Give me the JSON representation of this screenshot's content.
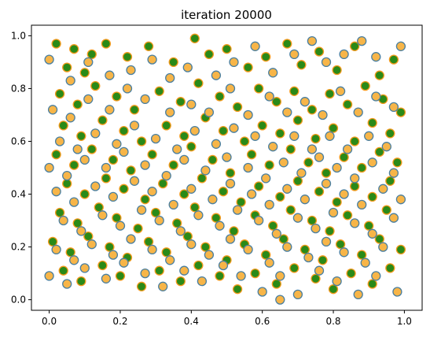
{
  "chart_data": {
    "type": "scatter",
    "title": "iteration 20000",
    "xlabel": "",
    "ylabel": "",
    "xlim": [
      -0.05,
      1.05
    ],
    "ylim": [
      -0.04,
      1.04
    ],
    "x_ticks": [
      "0.0",
      "0.2",
      "0.4",
      "0.6",
      "0.8",
      "1.0"
    ],
    "y_ticks": [
      "0.0",
      "0.2",
      "0.4",
      "0.6",
      "0.8",
      "1.0"
    ],
    "x_tick_values": [
      0.0,
      0.2,
      0.4,
      0.6,
      0.8,
      1.0
    ],
    "y_tick_values": [
      0.0,
      0.2,
      0.4,
      0.6,
      0.8,
      1.0
    ],
    "grid": false,
    "legend": false,
    "approx_point_count": 1000,
    "series": [
      {
        "fill": "#2a8a18",
        "edge": "#f59a1c",
        "points": [
          [
            0.02,
            0.97
          ],
          [
            0.05,
            0.88
          ],
          [
            0.07,
            0.95
          ],
          [
            0.1,
            0.86
          ],
          [
            0.12,
            0.93
          ],
          [
            0.16,
            0.97
          ],
          [
            0.22,
            0.92
          ],
          [
            0.28,
            0.96
          ],
          [
            0.35,
            0.9
          ],
          [
            0.41,
            0.99
          ],
          [
            0.45,
            0.93
          ],
          [
            0.5,
            0.95
          ],
          [
            0.56,
            0.88
          ],
          [
            0.61,
            0.92
          ],
          [
            0.67,
            0.97
          ],
          [
            0.71,
            0.89
          ],
          [
            0.76,
            0.94
          ],
          [
            0.81,
            0.87
          ],
          [
            0.86,
            0.96
          ],
          [
            0.93,
            0.85
          ],
          [
            0.97,
            0.91
          ],
          [
            0.03,
            0.78
          ],
          [
            0.08,
            0.74
          ],
          [
            0.13,
            0.81
          ],
          [
            0.19,
            0.77
          ],
          [
            0.24,
            0.72
          ],
          [
            0.31,
            0.79
          ],
          [
            0.37,
            0.75
          ],
          [
            0.42,
            0.82
          ],
          [
            0.48,
            0.77
          ],
          [
            0.53,
            0.73
          ],
          [
            0.59,
            0.8
          ],
          [
            0.64,
            0.75
          ],
          [
            0.69,
            0.79
          ],
          [
            0.74,
            0.72
          ],
          [
            0.79,
            0.78
          ],
          [
            0.84,
            0.74
          ],
          [
            0.89,
            0.81
          ],
          [
            0.94,
            0.76
          ],
          [
            0.99,
            0.71
          ],
          [
            0.04,
            0.66
          ],
          [
            0.09,
            0.62
          ],
          [
            0.15,
            0.68
          ],
          [
            0.21,
            0.64
          ],
          [
            0.26,
            0.6
          ],
          [
            0.33,
            0.66
          ],
          [
            0.38,
            0.62
          ],
          [
            0.44,
            0.69
          ],
          [
            0.49,
            0.64
          ],
          [
            0.55,
            0.6
          ],
          [
            0.6,
            0.66
          ],
          [
            0.65,
            0.63
          ],
          [
            0.7,
            0.68
          ],
          [
            0.75,
            0.61
          ],
          [
            0.8,
            0.65
          ],
          [
            0.86,
            0.6
          ],
          [
            0.91,
            0.67
          ],
          [
            0.96,
            0.63
          ],
          [
            0.02,
            0.55
          ],
          [
            0.07,
            0.51
          ],
          [
            0.12,
            0.57
          ],
          [
            0.18,
            0.53
          ],
          [
            0.23,
            0.49
          ],
          [
            0.29,
            0.55
          ],
          [
            0.35,
            0.51
          ],
          [
            0.4,
            0.58
          ],
          [
            0.46,
            0.53
          ],
          [
            0.51,
            0.48
          ],
          [
            0.57,
            0.55
          ],
          [
            0.62,
            0.51
          ],
          [
            0.68,
            0.57
          ],
          [
            0.73,
            0.52
          ],
          [
            0.78,
            0.48
          ],
          [
            0.83,
            0.54
          ],
          [
            0.88,
            0.5
          ],
          [
            0.93,
            0.56
          ],
          [
            0.98,
            0.52
          ],
          [
            0.05,
            0.44
          ],
          [
            0.1,
            0.4
          ],
          [
            0.16,
            0.46
          ],
          [
            0.21,
            0.42
          ],
          [
            0.27,
            0.38
          ],
          [
            0.32,
            0.44
          ],
          [
            0.38,
            0.4
          ],
          [
            0.43,
            0.46
          ],
          [
            0.49,
            0.41
          ],
          [
            0.54,
            0.37
          ],
          [
            0.59,
            0.43
          ],
          [
            0.65,
            0.39
          ],
          [
            0.7,
            0.45
          ],
          [
            0.76,
            0.41
          ],
          [
            0.81,
            0.37
          ],
          [
            0.86,
            0.43
          ],
          [
            0.91,
            0.39
          ],
          [
            0.96,
            0.45
          ],
          [
            0.03,
            0.33
          ],
          [
            0.08,
            0.29
          ],
          [
            0.14,
            0.35
          ],
          [
            0.19,
            0.31
          ],
          [
            0.25,
            0.27
          ],
          [
            0.3,
            0.33
          ],
          [
            0.36,
            0.29
          ],
          [
            0.41,
            0.35
          ],
          [
            0.47,
            0.31
          ],
          [
            0.52,
            0.26
          ],
          [
            0.58,
            0.32
          ],
          [
            0.63,
            0.28
          ],
          [
            0.68,
            0.34
          ],
          [
            0.74,
            0.3
          ],
          [
            0.79,
            0.26
          ],
          [
            0.84,
            0.32
          ],
          [
            0.9,
            0.28
          ],
          [
            0.95,
            0.34
          ],
          [
            0.01,
            0.22
          ],
          [
            0.06,
            0.18
          ],
          [
            0.11,
            0.24
          ],
          [
            0.17,
            0.2
          ],
          [
            0.22,
            0.16
          ],
          [
            0.28,
            0.22
          ],
          [
            0.33,
            0.18
          ],
          [
            0.39,
            0.24
          ],
          [
            0.44,
            0.2
          ],
          [
            0.5,
            0.15
          ],
          [
            0.55,
            0.21
          ],
          [
            0.61,
            0.17
          ],
          [
            0.66,
            0.23
          ],
          [
            0.72,
            0.19
          ],
          [
            0.77,
            0.15
          ],
          [
            0.82,
            0.21
          ],
          [
            0.88,
            0.17
          ],
          [
            0.93,
            0.23
          ],
          [
            0.99,
            0.19
          ],
          [
            0.04,
            0.11
          ],
          [
            0.09,
            0.07
          ],
          [
            0.15,
            0.13
          ],
          [
            0.2,
            0.09
          ],
          [
            0.26,
            0.05
          ],
          [
            0.31,
            0.11
          ],
          [
            0.37,
            0.07
          ],
          [
            0.42,
            0.13
          ],
          [
            0.48,
            0.09
          ],
          [
            0.53,
            0.04
          ],
          [
            0.58,
            0.1
          ],
          [
            0.64,
            0.06
          ],
          [
            0.69,
            0.12
          ],
          [
            0.75,
            0.08
          ],
          [
            0.8,
            0.04
          ],
          [
            0.85,
            0.1
          ],
          [
            0.91,
            0.06
          ],
          [
            0.96,
            0.12
          ]
        ]
      },
      {
        "fill": "#f7b548",
        "edge": "#4a7fa0",
        "points": [
          [
            0.0,
            0.91
          ],
          [
            0.06,
            0.83
          ],
          [
            0.11,
            0.9
          ],
          [
            0.17,
            0.85
          ],
          [
            0.23,
            0.87
          ],
          [
            0.29,
            0.91
          ],
          [
            0.34,
            0.84
          ],
          [
            0.39,
            0.88
          ],
          [
            0.47,
            0.85
          ],
          [
            0.52,
            0.9
          ],
          [
            0.58,
            0.96
          ],
          [
            0.63,
            0.86
          ],
          [
            0.69,
            0.93
          ],
          [
            0.74,
            0.98
          ],
          [
            0.78,
            0.9
          ],
          [
            0.83,
            0.93
          ],
          [
            0.88,
            0.98
          ],
          [
            0.92,
            0.92
          ],
          [
            0.99,
            0.96
          ],
          [
            0.01,
            0.72
          ],
          [
            0.06,
            0.69
          ],
          [
            0.11,
            0.76
          ],
          [
            0.17,
            0.72
          ],
          [
            0.22,
            0.8
          ],
          [
            0.27,
            0.76
          ],
          [
            0.34,
            0.71
          ],
          [
            0.4,
            0.74
          ],
          [
            0.45,
            0.71
          ],
          [
            0.51,
            0.8
          ],
          [
            0.56,
            0.7
          ],
          [
            0.62,
            0.77
          ],
          [
            0.67,
            0.71
          ],
          [
            0.72,
            0.75
          ],
          [
            0.77,
            0.7
          ],
          [
            0.82,
            0.79
          ],
          [
            0.87,
            0.71
          ],
          [
            0.92,
            0.77
          ],
          [
            0.97,
            0.73
          ],
          [
            0.03,
            0.6
          ],
          [
            0.08,
            0.57
          ],
          [
            0.13,
            0.63
          ],
          [
            0.19,
            0.59
          ],
          [
            0.24,
            0.66
          ],
          [
            0.3,
            0.61
          ],
          [
            0.36,
            0.57
          ],
          [
            0.41,
            0.64
          ],
          [
            0.47,
            0.59
          ],
          [
            0.52,
            0.65
          ],
          [
            0.58,
            0.62
          ],
          [
            0.63,
            0.58
          ],
          [
            0.69,
            0.62
          ],
          [
            0.74,
            0.57
          ],
          [
            0.79,
            0.62
          ],
          [
            0.84,
            0.57
          ],
          [
            0.9,
            0.62
          ],
          [
            0.95,
            0.58
          ],
          [
            0.0,
            0.5
          ],
          [
            0.05,
            0.47
          ],
          [
            0.1,
            0.53
          ],
          [
            0.16,
            0.5
          ],
          [
            0.21,
            0.56
          ],
          [
            0.27,
            0.51
          ],
          [
            0.33,
            0.47
          ],
          [
            0.38,
            0.53
          ],
          [
            0.44,
            0.49
          ],
          [
            0.5,
            0.54
          ],
          [
            0.56,
            0.5
          ],
          [
            0.61,
            0.46
          ],
          [
            0.66,
            0.52
          ],
          [
            0.71,
            0.48
          ],
          [
            0.76,
            0.54
          ],
          [
            0.81,
            0.5
          ],
          [
            0.86,
            0.46
          ],
          [
            0.91,
            0.52
          ],
          [
            0.97,
            0.48
          ],
          [
            0.02,
            0.41
          ],
          [
            0.07,
            0.37
          ],
          [
            0.13,
            0.43
          ],
          [
            0.18,
            0.39
          ],
          [
            0.24,
            0.45
          ],
          [
            0.29,
            0.41
          ],
          [
            0.35,
            0.36
          ],
          [
            0.4,
            0.42
          ],
          [
            0.46,
            0.38
          ],
          [
            0.51,
            0.44
          ],
          [
            0.57,
            0.4
          ],
          [
            0.62,
            0.36
          ],
          [
            0.67,
            0.42
          ],
          [
            0.72,
            0.38
          ],
          [
            0.78,
            0.44
          ],
          [
            0.83,
            0.4
          ],
          [
            0.88,
            0.36
          ],
          [
            0.94,
            0.42
          ],
          [
            0.99,
            0.38
          ],
          [
            0.04,
            0.3
          ],
          [
            0.09,
            0.26
          ],
          [
            0.15,
            0.32
          ],
          [
            0.2,
            0.28
          ],
          [
            0.26,
            0.34
          ],
          [
            0.31,
            0.3
          ],
          [
            0.37,
            0.26
          ],
          [
            0.42,
            0.32
          ],
          [
            0.48,
            0.28
          ],
          [
            0.53,
            0.34
          ],
          [
            0.59,
            0.3
          ],
          [
            0.64,
            0.25
          ],
          [
            0.7,
            0.31
          ],
          [
            0.75,
            0.27
          ],
          [
            0.8,
            0.33
          ],
          [
            0.86,
            0.29
          ],
          [
            0.91,
            0.25
          ],
          [
            0.97,
            0.31
          ],
          [
            0.02,
            0.19
          ],
          [
            0.07,
            0.15
          ],
          [
            0.12,
            0.21
          ],
          [
            0.18,
            0.17
          ],
          [
            0.23,
            0.23
          ],
          [
            0.29,
            0.19
          ],
          [
            0.34,
            0.15
          ],
          [
            0.4,
            0.21
          ],
          [
            0.45,
            0.17
          ],
          [
            0.51,
            0.23
          ],
          [
            0.56,
            0.19
          ],
          [
            0.62,
            0.14
          ],
          [
            0.67,
            0.2
          ],
          [
            0.73,
            0.16
          ],
          [
            0.78,
            0.22
          ],
          [
            0.83,
            0.18
          ],
          [
            0.89,
            0.14
          ],
          [
            0.94,
            0.2
          ],
          [
            0.0,
            0.09
          ],
          [
            0.05,
            0.06
          ],
          [
            0.1,
            0.12
          ],
          [
            0.16,
            0.08
          ],
          [
            0.21,
            0.14
          ],
          [
            0.27,
            0.1
          ],
          [
            0.32,
            0.05
          ],
          [
            0.38,
            0.11
          ],
          [
            0.43,
            0.07
          ],
          [
            0.49,
            0.13
          ],
          [
            0.54,
            0.09
          ],
          [
            0.6,
            0.03
          ],
          [
            0.65,
            0.09
          ],
          [
            0.7,
            0.02
          ],
          [
            0.76,
            0.11
          ],
          [
            0.81,
            0.07
          ],
          [
            0.87,
            0.02
          ],
          [
            0.92,
            0.09
          ],
          [
            0.98,
            0.03
          ],
          [
            0.65,
            0.0
          ]
        ]
      }
    ]
  }
}
